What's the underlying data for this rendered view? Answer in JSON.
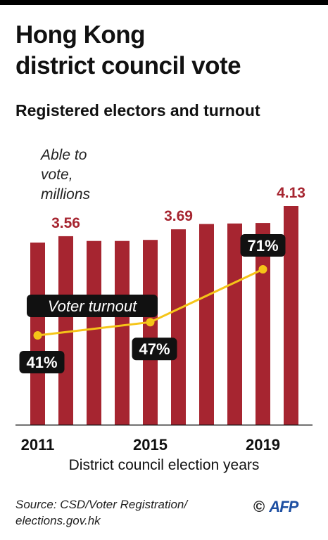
{
  "title_line1": "Hong Kong",
  "title_line2": "district council vote",
  "subtitle": "Registered electors and turnout",
  "ylabel_lines": [
    "Able to",
    "vote,",
    "millions"
  ],
  "xlabel": "District council election years",
  "source_line1": "Source: CSD/Voter Registration/",
  "source_line2": "elections.gov.hk",
  "credit_symbol": "©",
  "credit_logo": "AFP",
  "colors": {
    "bar": "#a62530",
    "bar_label": "#a62530",
    "line": "#f5c518",
    "tag_bg": "#111111",
    "tag_text": "#ffffff"
  },
  "chart_data": {
    "type": "bar",
    "title": "Hong Kong district council vote",
    "subtitle": "Registered electors and turnout",
    "ylabel": "Able to vote, millions",
    "xlabel": "District council election years",
    "x_ticks": [
      "2011",
      "2015",
      "2019"
    ],
    "ylim": [
      0,
      4.13
    ],
    "bars": [
      {
        "year": 2011,
        "value": 3.44
      },
      {
        "year": 2012,
        "value": 3.56,
        "label": "3.56"
      },
      {
        "year": 2013,
        "value": 3.47
      },
      {
        "year": 2014,
        "value": 3.47
      },
      {
        "year": 2015,
        "value": 3.49
      },
      {
        "year": 2016,
        "value": 3.69,
        "label": "3.69"
      },
      {
        "year": 2017,
        "value": 3.79
      },
      {
        "year": 2018,
        "value": 3.8
      },
      {
        "year": 2019,
        "value": 3.81
      },
      {
        "year": 2020,
        "value": 4.13,
        "label": "4.13"
      }
    ],
    "turnout": {
      "name": "Voter turnout",
      "unit": "%",
      "points": [
        {
          "year": 2011,
          "value": 41,
          "label": "41%"
        },
        {
          "year": 2015,
          "value": 47,
          "label": "47%"
        },
        {
          "year": 2019,
          "value": 71,
          "label": "71%"
        }
      ]
    }
  }
}
